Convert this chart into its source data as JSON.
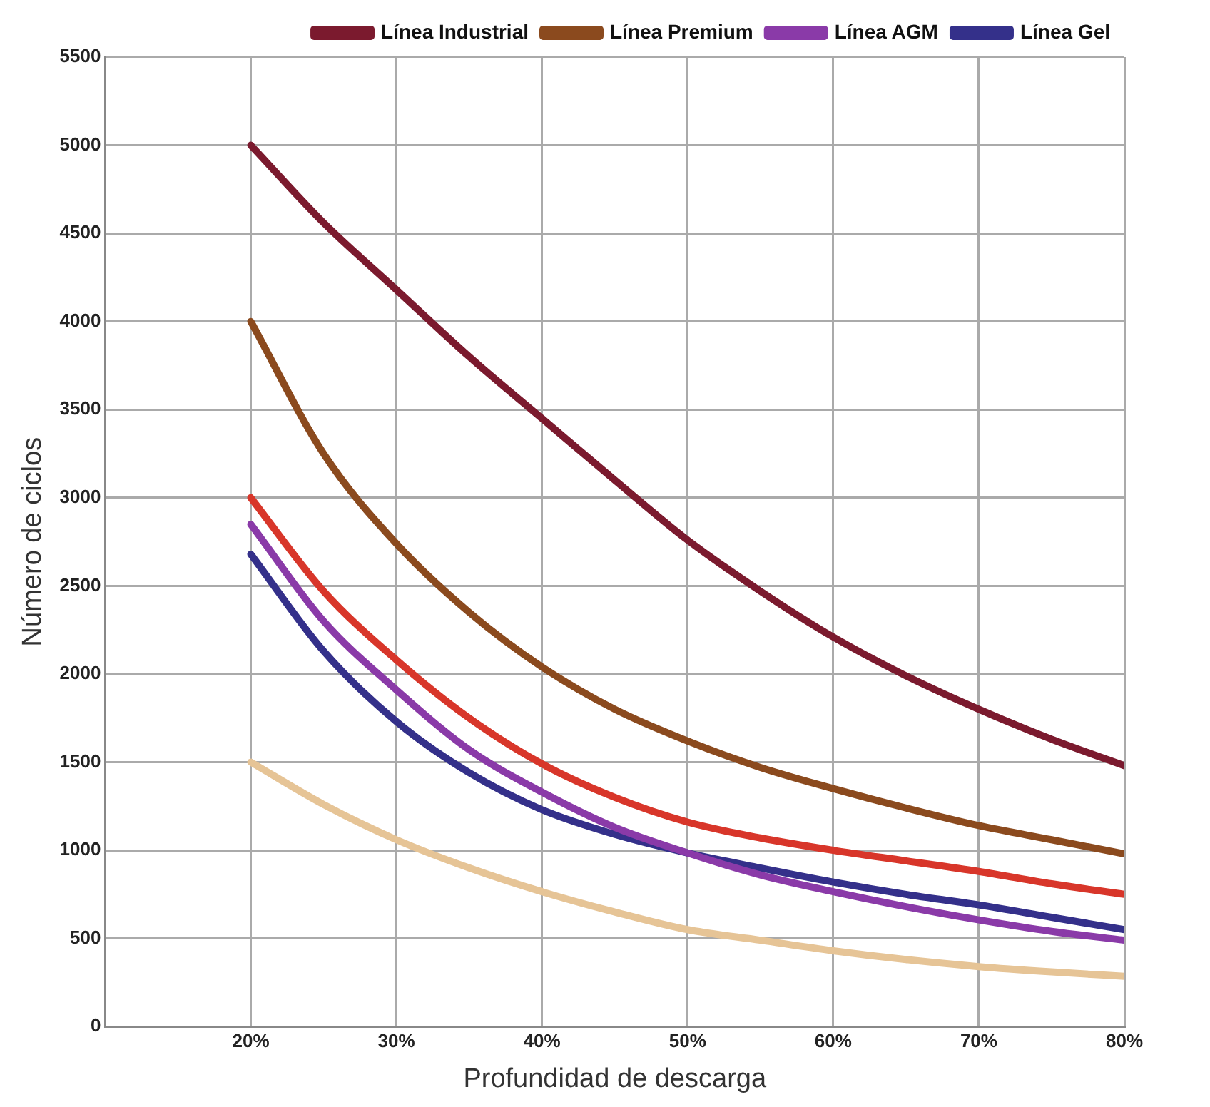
{
  "chart_data": {
    "type": "line",
    "xlabel": "Profundidad de descarga",
    "ylabel": "Número de ciclos",
    "x": [
      20,
      25,
      30,
      35,
      40,
      45,
      50,
      55,
      60,
      65,
      70,
      75,
      80
    ],
    "xlim": [
      10,
      80
    ],
    "xticks": [
      {
        "value": 20,
        "label": "20%"
      },
      {
        "value": 30,
        "label": "30%"
      },
      {
        "value": 40,
        "label": "40%"
      },
      {
        "value": 50,
        "label": "50%"
      },
      {
        "value": 60,
        "label": "60%"
      },
      {
        "value": 70,
        "label": "70%"
      },
      {
        "value": 80,
        "label": "80%"
      }
    ],
    "ylim": [
      0,
      5500
    ],
    "yticks": [
      0,
      500,
      1000,
      1500,
      2000,
      2500,
      3000,
      3500,
      4000,
      4500,
      5000,
      5500
    ],
    "grid": true,
    "legend": "top right",
    "marker": "none",
    "line_style": "solid",
    "series": [
      {
        "name": "Línea Industrial",
        "color": "#7b1a2e",
        "values": [
          5000,
          4560,
          4180,
          3800,
          3450,
          3100,
          2760,
          2470,
          2210,
          1990,
          1800,
          1630,
          1480
        ]
      },
      {
        "name": "Línea Premium",
        "color": "#8b4a1e",
        "values": [
          4000,
          3250,
          2740,
          2350,
          2040,
          1800,
          1620,
          1470,
          1350,
          1240,
          1140,
          1060,
          980
        ]
      },
      {
        "name": "Línea AGM",
        "color": "#8a3aa8",
        "values": [
          2850,
          2300,
          1910,
          1570,
          1330,
          1130,
          985,
          860,
          765,
          680,
          605,
          540,
          490
        ]
      },
      {
        "name": "Línea Gel",
        "color": "#34308a",
        "values": [
          2680,
          2130,
          1730,
          1440,
          1230,
          1090,
          985,
          900,
          820,
          750,
          690,
          620,
          550
        ]
      },
      {
        "color": "#d8362a",
        "values": [
          3000,
          2470,
          2080,
          1750,
          1490,
          1300,
          1160,
          1070,
          1000,
          940,
          880,
          810,
          750
        ]
      },
      {
        "color": "#e6c496",
        "values": [
          1500,
          1260,
          1060,
          900,
          765,
          650,
          550,
          490,
          430,
          380,
          340,
          310,
          285
        ]
      }
    ]
  }
}
